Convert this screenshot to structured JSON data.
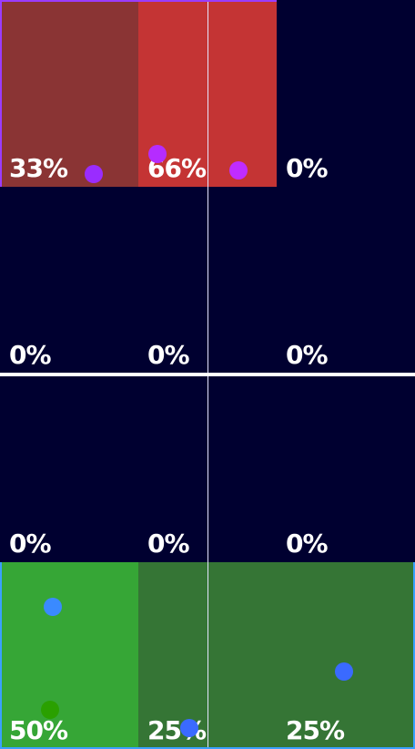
{
  "colors": {
    "background": "#000030",
    "red_light": "#c43434",
    "red_dark": "#8a3434",
    "green_light": "#36a636",
    "green_dark": "#357535",
    "purple_dot": "#9a2cff",
    "magenta_dot": "#c02cff",
    "blue_dot": "#3a7aff",
    "green_dot": "#2aa000",
    "purple_frame": "#9b3cff",
    "blue_frame": "#3aa0ff"
  },
  "cells": [
    {
      "label": "33%"
    },
    {
      "label": "66%"
    },
    {
      "label": "0%"
    },
    {
      "label": "0%"
    },
    {
      "label": "0%"
    },
    {
      "label": "0%"
    },
    {
      "label": "0%"
    },
    {
      "label": "0%"
    },
    {
      "label": "0%"
    },
    {
      "label": "50%"
    },
    {
      "label": "25%"
    },
    {
      "label": "25%"
    }
  ]
}
